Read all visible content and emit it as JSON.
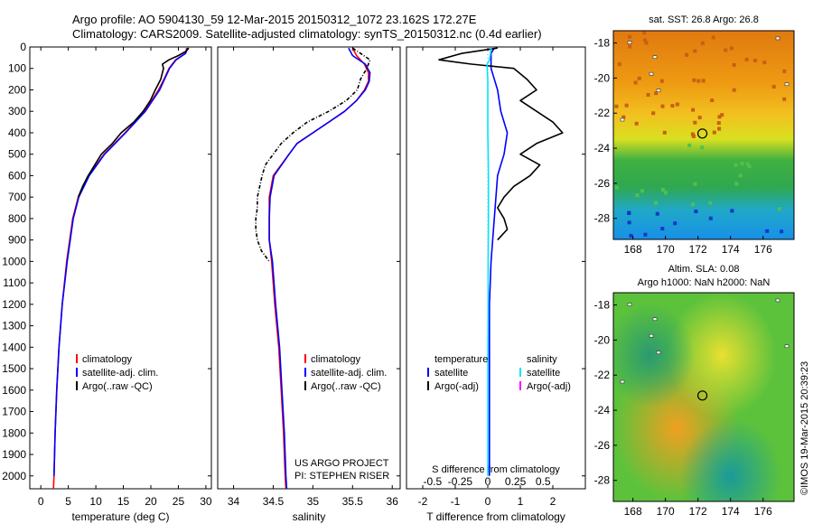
{
  "header": {
    "line1": "Argo profile: AO 5904130_59 12-Mar-2015 20150312_1072 23.162S 172.27E",
    "line2": "Climatology: CARS2009. Satellite-adjusted climatology: synTS_20150312.nc (0.4d earlier)"
  },
  "footer": {
    "project": "US ARGO PROJECT",
    "pi": "PI: STEPHEN RISER",
    "stamp": "©IMOS 19-Mar-2015 20:39:23"
  },
  "legends": {
    "temp": [
      "climatology",
      "satellite-adj. clim.",
      "Argo(..raw -QC)"
    ],
    "sal": [
      "climatology",
      "satellite-adj. clim.",
      "Argo(..raw -QC)"
    ],
    "diff": {
      "temp_title": "temperature",
      "sal_title": "salinity",
      "temp_items": [
        "satellite",
        "Argo(-adj)"
      ],
      "sal_items": [
        "satellite",
        "Argo(-adj)"
      ]
    }
  },
  "colors": {
    "climatology": "#ff0000",
    "satellite_adj": "#0000ff",
    "argo": "#000000",
    "sal_satellite": "#00e5ff",
    "sal_argo": "#ff00ff"
  },
  "chart_data": [
    {
      "type": "line",
      "xlabel": "temperature (deg C)",
      "ylabel": "",
      "xlim": [
        -2,
        31
      ],
      "ylim": [
        2060,
        0
      ],
      "xticks": [
        0,
        5,
        10,
        15,
        20,
        25,
        30
      ],
      "yticks": [
        0,
        100,
        200,
        300,
        400,
        500,
        600,
        700,
        800,
        900,
        1000,
        1100,
        1200,
        1300,
        1400,
        1500,
        1600,
        1700,
        1800,
        1900,
        2000
      ],
      "series": [
        {
          "name": "climatology",
          "depth": [
            5,
            30,
            60,
            100,
            150,
            200,
            300,
            400,
            500,
            600,
            700,
            800,
            1000,
            1200,
            1400,
            1600,
            1800,
            2000,
            2060
          ],
          "values": [
            26.5,
            26.3,
            24.5,
            23.3,
            22.4,
            21.4,
            18.9,
            15.3,
            11.5,
            8.7,
            6.8,
            5.8,
            4.7,
            3.9,
            3.3,
            2.9,
            2.6,
            2.4,
            2.3
          ]
        },
        {
          "name": "satellite-adj. clim.",
          "depth": [
            5,
            30,
            60,
            100,
            150,
            200,
            300,
            400,
            500,
            600,
            700,
            800,
            1000,
            1200,
            1400,
            1600,
            1800,
            2000
          ],
          "values": [
            26.7,
            26.3,
            24.6,
            23.4,
            22.5,
            21.6,
            19.0,
            15.4,
            11.6,
            8.8,
            6.9,
            5.9,
            4.8,
            3.9,
            3.3,
            2.9,
            2.6,
            2.4
          ]
        },
        {
          "name": "Argo(..raw -QC)",
          "depth": [
            5,
            20,
            40,
            60,
            80,
            100,
            150,
            200,
            250,
            300,
            350,
            400,
            450,
            500,
            550,
            600,
            650,
            700
          ],
          "values": [
            26.9,
            26.4,
            25.0,
            23.3,
            22.1,
            22.3,
            21.8,
            20.8,
            19.9,
            18.6,
            16.9,
            14.6,
            13.0,
            11.0,
            9.8,
            8.6,
            7.6,
            6.8
          ]
        }
      ]
    },
    {
      "type": "line",
      "xlabel": "salinity",
      "ylabel": "",
      "xlim": [
        33.8,
        36.1
      ],
      "ylim": [
        2060,
        0
      ],
      "xticks": [
        34,
        34.5,
        35,
        35.5,
        36
      ],
      "series": [
        {
          "name": "climatology",
          "depth": [
            5,
            40,
            80,
            120,
            160,
            200,
            250,
            300,
            350,
            400,
            450,
            500,
            600,
            700,
            800,
            900,
            1000,
            1200,
            1400,
            1600,
            1800,
            2000,
            2060
          ],
          "values": [
            35.5,
            35.55,
            35.65,
            35.7,
            35.7,
            35.65,
            35.55,
            35.4,
            35.2,
            35.0,
            34.8,
            34.7,
            34.5,
            34.45,
            34.45,
            34.45,
            34.48,
            34.52,
            34.57,
            34.6,
            34.63,
            34.65,
            34.66
          ]
        },
        {
          "name": "satellite-adj. clim.",
          "depth": [
            5,
            40,
            80,
            120,
            160,
            200,
            250,
            300,
            350,
            400,
            450,
            500,
            600,
            700,
            800,
            900,
            1000,
            1200,
            1400,
            1600,
            1800,
            2000,
            2060
          ],
          "values": [
            35.45,
            35.5,
            35.66,
            35.72,
            35.71,
            35.66,
            35.55,
            35.4,
            35.2,
            35.0,
            34.8,
            34.7,
            34.51,
            34.46,
            34.45,
            34.45,
            34.49,
            34.53,
            34.58,
            34.61,
            34.64,
            34.66,
            34.67
          ]
        },
        {
          "name": "Argo(..raw -QC)",
          "depth": [
            5,
            30,
            60,
            100,
            150,
            200,
            250,
            300,
            350,
            400,
            450,
            500,
            550,
            600,
            650,
            700,
            750,
            800,
            850,
            900,
            950,
            1000
          ],
          "values": [
            35.5,
            35.6,
            35.72,
            35.68,
            35.6,
            35.56,
            35.42,
            35.2,
            34.93,
            34.75,
            34.6,
            34.5,
            34.4,
            34.36,
            34.33,
            34.3,
            34.3,
            34.28,
            34.28,
            34.3,
            34.35,
            34.45
          ]
        }
      ]
    },
    {
      "type": "line",
      "xlabel": "T difference from climatology",
      "x2label": "S difference from climatology",
      "xlim": [
        -2.5,
        3
      ],
      "ylim": [
        2060,
        0
      ],
      "xticks": [
        -2,
        -1,
        0,
        1,
        2
      ],
      "x2ticks": [
        -0.5,
        -0.25,
        0,
        0.25,
        0.5
      ],
      "series": [
        {
          "name": "temperature satellite",
          "depth": [
            5,
            30,
            60,
            100,
            200,
            300,
            400,
            500,
            600,
            700,
            800,
            1000,
            1200,
            1500,
            1800,
            2000
          ],
          "values": [
            0.2,
            0.1,
            0.1,
            0.1,
            0.3,
            0.4,
            0.6,
            0.5,
            0.3,
            0.25,
            0.2,
            0.1,
            0.05,
            0.05,
            0.05,
            0.05
          ]
        },
        {
          "name": "temperature Argo(-adj)",
          "depth": [
            5,
            30,
            60,
            80,
            100,
            150,
            200,
            250,
            300,
            350,
            400,
            450,
            500,
            550,
            600,
            650,
            700,
            750,
            800,
            850,
            900
          ],
          "values": [
            0.3,
            -0.8,
            -1.5,
            -0.5,
            0.8,
            1.2,
            1.5,
            1.0,
            1.5,
            2.0,
            2.3,
            1.5,
            1.0,
            1.6,
            1.3,
            0.8,
            0.5,
            0.3,
            0.5,
            0.6,
            0.3
          ]
        },
        {
          "name": "salinity satellite",
          "depth": [
            5,
            30,
            60,
            80,
            100,
            150,
            200,
            300,
            400,
            500,
            600,
            700,
            800,
            1000,
            1200,
            1500,
            1800,
            2000
          ],
          "values": [
            0.1,
            0.08,
            0.05,
            -0.02,
            -0.02,
            0.0,
            0.0,
            0.0,
            0.0,
            0.01,
            0.02,
            0.02,
            0.02,
            0.01,
            0.01,
            0.0,
            0.0,
            0.0
          ]
        }
      ]
    },
    {
      "type": "heatmap",
      "title": "sat. SST: 26.8 Argo: 26.8",
      "xticks": [
        168,
        170,
        172,
        174,
        176
      ],
      "yticks": [
        -18,
        -20,
        -22,
        -24,
        -26,
        -28
      ],
      "xlim": [
        166.8,
        177.9
      ],
      "ylim": [
        -29.2,
        -17.3
      ],
      "marker": [
        172.27,
        -23.162
      ]
    },
    {
      "type": "heatmap",
      "title": "Altim. SLA: 0.08",
      "subtitle": "Argo h1000: NaN h2000: NaN",
      "xticks": [
        168,
        170,
        172,
        174,
        176
      ],
      "yticks": [
        -18,
        -20,
        -22,
        -24,
        -26,
        -28
      ],
      "xlim": [
        166.8,
        177.9
      ],
      "ylim": [
        -29.2,
        -17.3
      ],
      "marker": [
        172.27,
        -23.162
      ]
    }
  ]
}
